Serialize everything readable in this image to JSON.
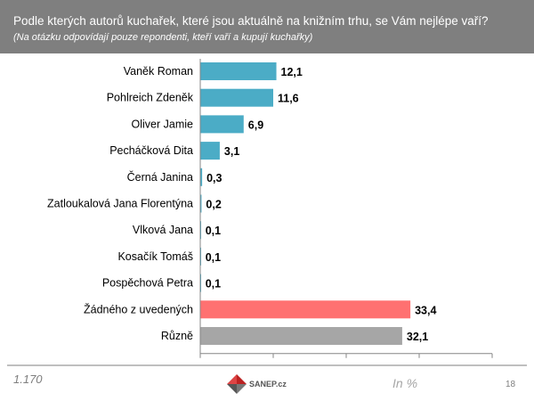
{
  "header": {
    "title": "Podle kterých autorů kuchařek, které jsou aktuálně na knižním trhu, se Vám nejlépe vaří?",
    "subtitle": "(Na otázku odpovídají pouze repondenti, kteří vaří a kupují kuchařky)"
  },
  "footer": {
    "base": "1.170",
    "unit": "In %",
    "page": "18",
    "logo": "SANEP.cz"
  },
  "chart_data": {
    "type": "bar",
    "orientation": "horizontal",
    "categories": [
      "Vaněk Roman",
      "Pohlreich Zdeněk",
      "Oliver Jamie",
      "Pecháčková Dita",
      "Černá Janina",
      "Zatloukalová Jana Florentýna",
      "Vlková Jana",
      "Kosačík Tomáš",
      "Pospěchová Petra",
      "Žádného z uvedených",
      "Různě"
    ],
    "values": [
      12.1,
      11.6,
      6.9,
      3.1,
      0.3,
      0.2,
      0.1,
      0.1,
      0.1,
      33.4,
      32.1
    ],
    "labels": [
      "12,1",
      "11,6",
      "6,9",
      "3,1",
      "0,3",
      "0,2",
      "0,1",
      "0,1",
      "0,1",
      "33,4",
      "32,1"
    ],
    "colors": [
      "#4bacc6",
      "#4bacc6",
      "#4bacc6",
      "#4bacc6",
      "#4bacc6",
      "#4bacc6",
      "#4bacc6",
      "#4bacc6",
      "#4bacc6",
      "#ff7171",
      "#a6a6a6"
    ],
    "xlim": [
      0,
      46.4
    ],
    "grid": false,
    "legend": "none"
  }
}
